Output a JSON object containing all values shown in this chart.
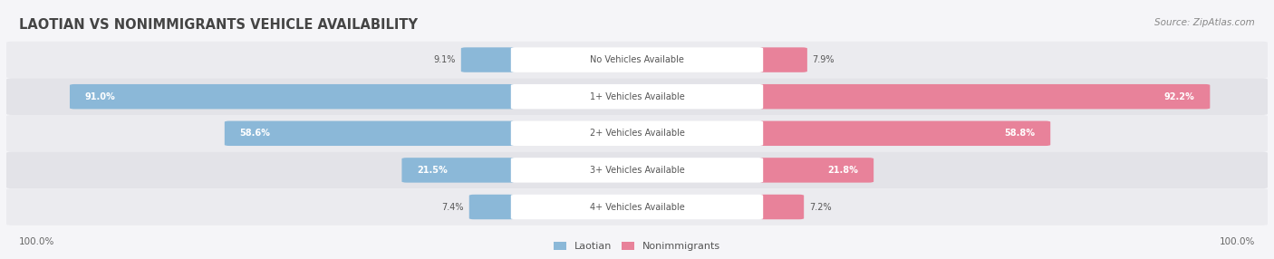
{
  "title": "LAOTIAN VS NONIMMIGRANTS VEHICLE AVAILABILITY",
  "source": "Source: ZipAtlas.com",
  "categories": [
    "No Vehicles Available",
    "1+ Vehicles Available",
    "2+ Vehicles Available",
    "3+ Vehicles Available",
    "4+ Vehicles Available"
  ],
  "laotian": [
    9.1,
    91.0,
    58.6,
    21.5,
    7.4
  ],
  "nonimmigrants": [
    7.9,
    92.2,
    58.8,
    21.8,
    7.2
  ],
  "laotian_color": "#8BB8D8",
  "nonimmigrant_color": "#E8829A",
  "title_color": "#444444",
  "figsize": [
    14.06,
    2.86
  ],
  "dpi": 100
}
